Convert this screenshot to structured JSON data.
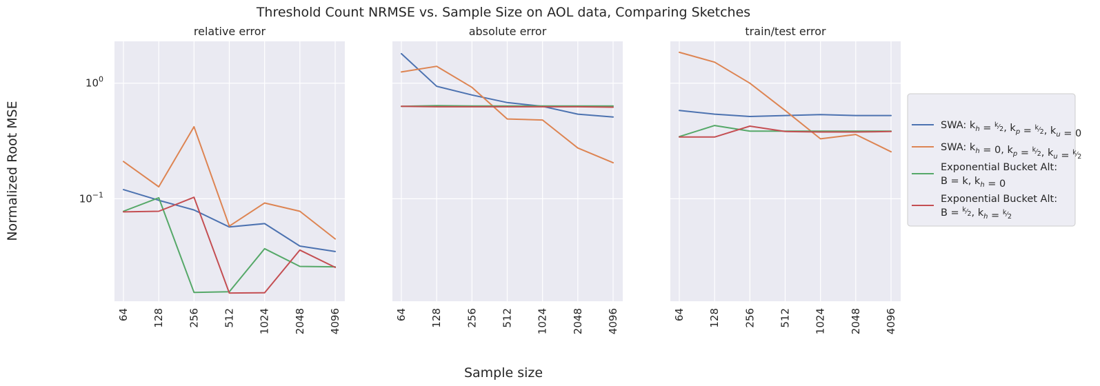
{
  "chart_data": {
    "type": "line",
    "title": "Threshold Count NRMSE vs. Sample Size on AOL data, Comparing Sketches",
    "xlabel": "Sample size",
    "ylabel": "Normalized Root MSE",
    "yscale": "log",
    "ylim": [
      0.013,
      2.3
    ],
    "grid": true,
    "legend_position": "right",
    "x": [
      "64",
      "128",
      "256",
      "512",
      "1024",
      "2048",
      "4096"
    ],
    "ytick_labels": [
      {
        "value": 1,
        "base": "10",
        "exp": "0"
      },
      {
        "value": 0.1,
        "base": "10",
        "exp": "−1"
      }
    ],
    "series_style": [
      {
        "color": "#4c72b0"
      },
      {
        "color": "#dd8452"
      },
      {
        "color": "#55a868"
      },
      {
        "color": "#c44e52"
      }
    ],
    "legend": [
      {
        "lines": [
          [
            {
              "t": "SWA: k"
            },
            {
              "t": "h",
              "sub": true
            },
            {
              "t": " = "
            },
            {
              "frac": [
                "k",
                "2"
              ]
            },
            {
              "t": ", k"
            },
            {
              "t": "p",
              "sub": true
            },
            {
              "t": " = "
            },
            {
              "frac": [
                "k",
                "2"
              ]
            },
            {
              "t": ", k"
            },
            {
              "t": "u",
              "sub": true
            },
            {
              "t": " = 0"
            }
          ]
        ]
      },
      {
        "lines": [
          [
            {
              "t": "SWA: k"
            },
            {
              "t": "h",
              "sub": true
            },
            {
              "t": " = 0, k"
            },
            {
              "t": "p",
              "sub": true
            },
            {
              "t": " = "
            },
            {
              "frac": [
                "k",
                "2"
              ]
            },
            {
              "t": ", k"
            },
            {
              "t": "u",
              "sub": true
            },
            {
              "t": " = "
            },
            {
              "frac": [
                "k",
                "2"
              ]
            }
          ]
        ]
      },
      {
        "lines": [
          [
            {
              "t": "Exponential Bucket Alt:"
            }
          ],
          [
            {
              "t": "B = k, k"
            },
            {
              "t": "h",
              "sub": true
            },
            {
              "t": " = 0"
            }
          ]
        ]
      },
      {
        "lines": [
          [
            {
              "t": "Exponential Bucket Alt:"
            }
          ],
          [
            {
              "t": "B = "
            },
            {
              "frac": [
                "k",
                "2"
              ]
            },
            {
              "t": ", k"
            },
            {
              "t": "h",
              "sub": true
            },
            {
              "t": " = "
            },
            {
              "frac": [
                "k",
                "2"
              ]
            }
          ]
        ]
      }
    ],
    "panels": [
      {
        "title": "relative error",
        "series": [
          {
            "values": [
              0.12,
              0.097,
              0.08,
              0.057,
              0.061,
              0.039,
              0.035
            ]
          },
          {
            "values": [
              0.21,
              0.127,
              0.42,
              0.058,
              0.092,
              0.078,
              0.045
            ]
          },
          {
            "values": [
              0.078,
              0.102,
              0.0155,
              0.0157,
              0.037,
              0.026,
              0.0258
            ]
          },
          {
            "values": [
              0.077,
              0.078,
              0.103,
              0.0153,
              0.0154,
              0.036,
              0.0255
            ]
          }
        ]
      },
      {
        "title": "absolute error",
        "series": [
          {
            "values": [
              1.8,
              0.94,
              0.79,
              0.68,
              0.63,
              0.54,
              0.51
            ]
          },
          {
            "values": [
              1.25,
              1.4,
              0.92,
              0.49,
              0.48,
              0.275,
              0.205
            ]
          },
          {
            "values": [
              0.63,
              0.64,
              0.635,
              0.635,
              0.635,
              0.635,
              0.635
            ]
          },
          {
            "values": [
              0.63,
              0.625,
              0.625,
              0.625,
              0.625,
              0.625,
              0.62
            ]
          }
        ]
      },
      {
        "title": "train/test error",
        "series": [
          {
            "values": [
              0.58,
              0.54,
              0.515,
              0.525,
              0.535,
              0.525,
              0.525
            ]
          },
          {
            "values": [
              1.85,
              1.52,
              1.0,
              0.58,
              0.33,
              0.36,
              0.255
            ]
          },
          {
            "values": [
              0.345,
              0.43,
              0.385,
              0.385,
              0.385,
              0.385,
              0.385
            ]
          },
          {
            "values": [
              0.342,
              0.342,
              0.425,
              0.382,
              0.378,
              0.378,
              0.382
            ]
          }
        ]
      }
    ]
  }
}
